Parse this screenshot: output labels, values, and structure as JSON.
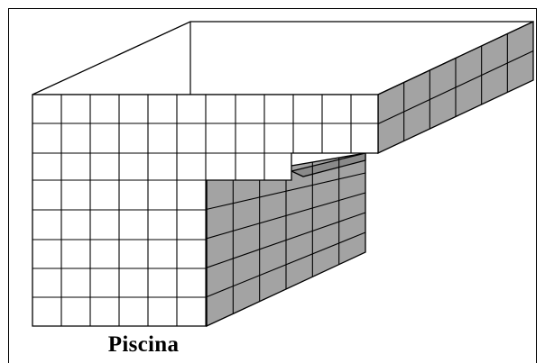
{
  "caption": "Piscina",
  "colors": {
    "background": "#ffffff",
    "outline": "#000000",
    "tile_face": "#ffffff",
    "tile_side": "#a3a3a3",
    "tile_side_dark": "#8a8a8a"
  },
  "icons": {
    "pool": "pool-diagram"
  }
}
